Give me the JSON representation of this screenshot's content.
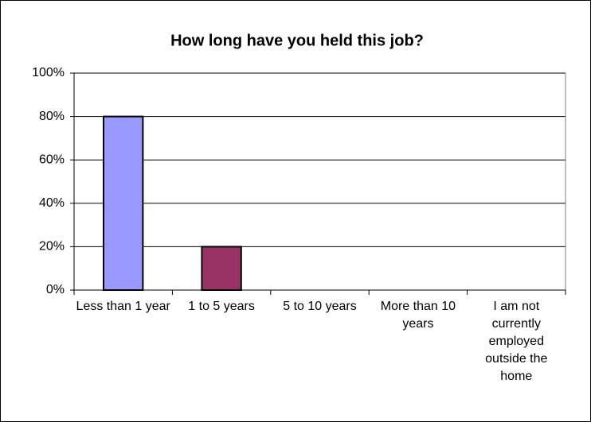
{
  "chart_data": {
    "type": "bar",
    "title": "How long have you held this job?",
    "categories": [
      "Less than 1 year",
      "1 to 5 years",
      "5 to 10 years",
      "More than 10 years",
      "I am not currently employed outside the home"
    ],
    "values": [
      80,
      20,
      0,
      0,
      0
    ],
    "colors": [
      "#9999ff",
      "#993366",
      "#ffffcc",
      "#ccffff",
      "#660066"
    ],
    "ylim": [
      0,
      100
    ],
    "yticks": [
      {
        "value": 0,
        "label": "0%"
      },
      {
        "value": 20,
        "label": "20%"
      },
      {
        "value": 40,
        "label": "40%"
      },
      {
        "value": 60,
        "label": "60%"
      },
      {
        "value": 80,
        "label": "80%"
      },
      {
        "value": 100,
        "label": "100%"
      }
    ],
    "grid": true
  }
}
